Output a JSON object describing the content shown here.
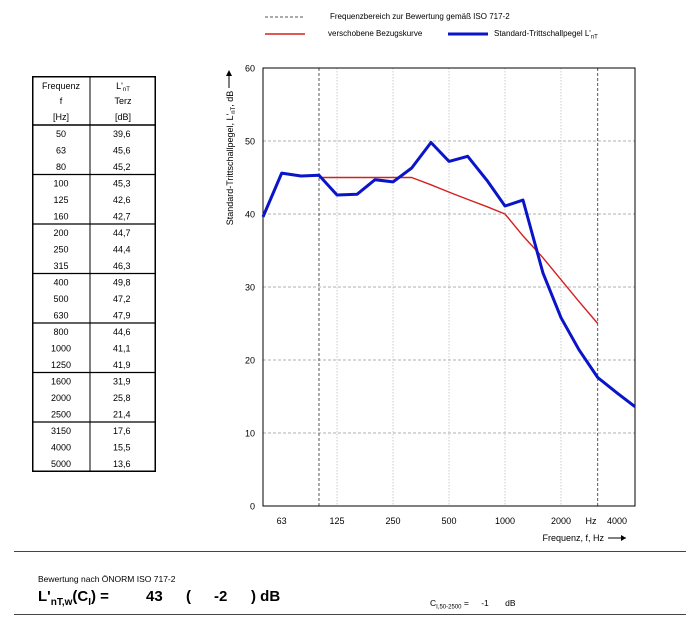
{
  "legend": {
    "range": "Frequenzbereich zur Bewertung gemäß ISO 717-2",
    "shifted": "verschobene Bezugskurve",
    "measured_prefix": "Standard-Trittschallpegel L'",
    "measured_sub": "nT",
    "colors": {
      "range": "#555555",
      "shifted": "#d42020",
      "measured": "#0a14c8"
    }
  },
  "table": {
    "header": {
      "col1": [
        "Frequenz",
        "f",
        "[Hz]"
      ],
      "col2_main": "L'",
      "col2_sub": "nT",
      "col2": [
        "Terz",
        "[dB]"
      ]
    },
    "rows": [
      [
        "50",
        "39,6"
      ],
      [
        "63",
        "45,6"
      ],
      [
        "80",
        "45,2"
      ],
      [
        "100",
        "45,3"
      ],
      [
        "125",
        "42,6"
      ],
      [
        "160",
        "42,7"
      ],
      [
        "200",
        "44,7"
      ],
      [
        "250",
        "44,4"
      ],
      [
        "315",
        "46,3"
      ],
      [
        "400",
        "49,8"
      ],
      [
        "500",
        "47,2"
      ],
      [
        "630",
        "47,9"
      ],
      [
        "800",
        "44,6"
      ],
      [
        "1000",
        "41,1"
      ],
      [
        "1250",
        "41,9"
      ],
      [
        "1600",
        "31,9"
      ],
      [
        "2000",
        "25,8"
      ],
      [
        "2500",
        "21,4"
      ],
      [
        "3150",
        "17,6"
      ],
      [
        "4000",
        "15,5"
      ],
      [
        "5000",
        "13,6"
      ]
    ]
  },
  "chart_data": {
    "type": "line",
    "ylabel_main": "Standard-Trittschallpegel, L'",
    "ylabel_sub": "nT",
    "ylabel_unit": ", dB",
    "xlabel": "Frequenz, f, Hz",
    "ylim": [
      0,
      60
    ],
    "yticks": [
      "0",
      "10",
      "20",
      "30",
      "40",
      "50",
      "60"
    ],
    "xticks": [
      {
        "f": 63,
        "label": "63"
      },
      {
        "f": 125,
        "label": "125"
      },
      {
        "f": 250,
        "label": "250"
      },
      {
        "f": 500,
        "label": "500"
      },
      {
        "f": 1000,
        "label": "1000"
      },
      {
        "f": 2000,
        "label": "2000"
      },
      {
        "f": 2900,
        "label": "Hz"
      },
      {
        "f": 4000,
        "label": "4000"
      }
    ],
    "xlim_hz": [
      50,
      5000
    ],
    "eval_range_hz": [
      100,
      3150
    ],
    "grid": true,
    "series": [
      {
        "key": "measured",
        "color": "#0a14c8",
        "x": [
          50,
          63,
          80,
          100,
          125,
          160,
          200,
          250,
          315,
          400,
          500,
          630,
          800,
          1000,
          1250,
          1600,
          2000,
          2500,
          3150,
          4000,
          5000
        ],
        "y": [
          39.6,
          45.6,
          45.2,
          45.3,
          42.6,
          42.7,
          44.7,
          44.4,
          46.3,
          49.8,
          47.2,
          47.9,
          44.6,
          41.1,
          41.9,
          31.9,
          25.8,
          21.4,
          17.6,
          15.5,
          13.6
        ]
      },
      {
        "key": "shifted",
        "color": "#d42020",
        "x": [
          100,
          125,
          160,
          200,
          250,
          315,
          400,
          500,
          630,
          800,
          1000,
          1250,
          1600,
          2000,
          2500,
          3150
        ],
        "y": [
          45,
          45,
          45,
          45,
          45,
          45,
          44,
          43,
          42,
          41,
          40,
          37,
          34,
          31,
          28,
          25
        ]
      }
    ]
  },
  "rating": {
    "label": "Bewertung nach  ÖNORM ISO 717-2",
    "symbol_main": "L'",
    "symbol_sub": "nT,w",
    "symbol_open": "(C",
    "symbol_c_sub": "I",
    "symbol_close": ") =",
    "value": "43",
    "paren_open": "(",
    "ci_value": "-2",
    "paren_close_unit": ") dB",
    "c_label_main": "C",
    "c_label_sub": "I,50-2500",
    "c_eq": " =",
    "c_value": "-1",
    "c_unit": "dB"
  }
}
